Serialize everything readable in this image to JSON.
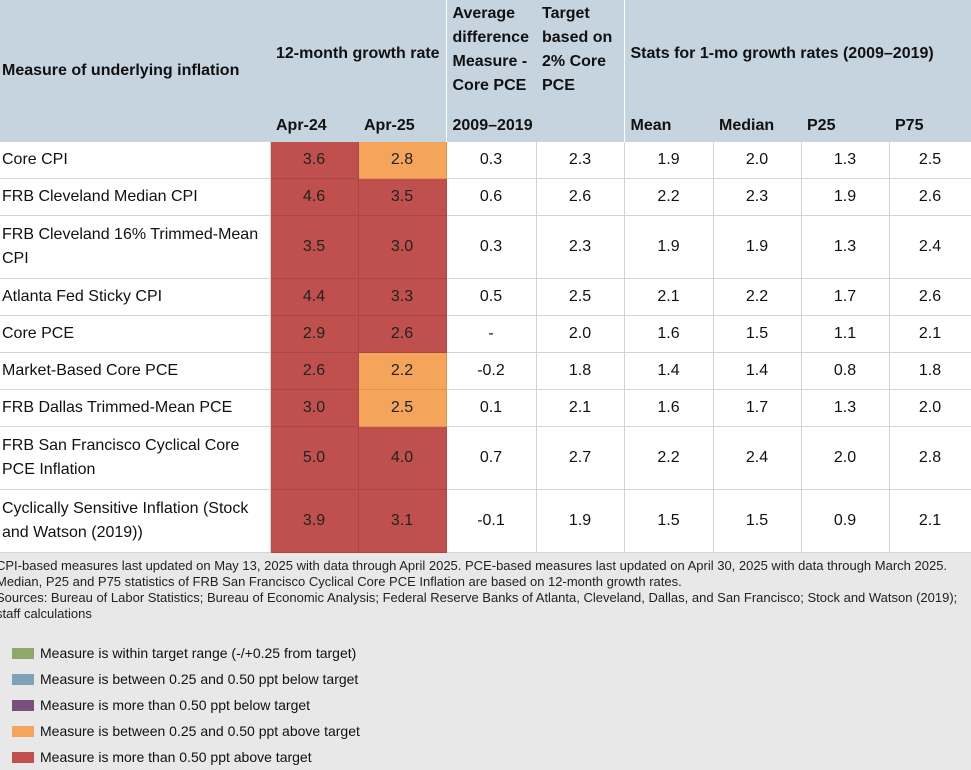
{
  "header": {
    "measure": "Measure of underlying inflation",
    "growth": "12-month growth rate",
    "avgdiff": "Average difference Measure - Core PCE",
    "target": "Target based on 2% Core PCE",
    "stats": "Stats for 1-mo growth rates (2009–2019)",
    "sub": [
      "Apr-24",
      "Apr-25",
      "2009–2019",
      "",
      "Mean",
      "Median",
      "P25",
      "P75"
    ]
  },
  "rows": [
    {
      "name": "Core CPI",
      "v": [
        "3.6",
        "2.8",
        "0.3",
        "2.3",
        "1.9",
        "2.0",
        "1.3",
        "2.5"
      ]
    },
    {
      "name": "FRB Cleveland Median CPI",
      "v": [
        "4.6",
        "3.5",
        "0.6",
        "2.6",
        "2.2",
        "2.3",
        "1.9",
        "2.6"
      ]
    },
    {
      "name": "FRB Cleveland 16% Trimmed-Mean CPI",
      "v": [
        "3.5",
        "3.0",
        "0.3",
        "2.3",
        "1.9",
        "1.9",
        "1.3",
        "2.4"
      ]
    },
    {
      "name": "Atlanta Fed Sticky CPI",
      "v": [
        "4.4",
        "3.3",
        "0.5",
        "2.5",
        "2.1",
        "2.2",
        "1.7",
        "2.6"
      ]
    },
    {
      "name": "Core PCE",
      "v": [
        "2.9",
        "2.6",
        "-",
        "2.0",
        "1.6",
        "1.5",
        "1.1",
        "2.1"
      ]
    },
    {
      "name": "Market-Based Core PCE",
      "v": [
        "2.6",
        "2.2",
        "-0.2",
        "1.8",
        "1.4",
        "1.4",
        "0.8",
        "1.8"
      ]
    },
    {
      "name": "FRB Dallas Trimmed-Mean PCE",
      "v": [
        "3.0",
        "2.5",
        "0.1",
        "2.1",
        "1.6",
        "1.7",
        "1.3",
        "2.0"
      ]
    },
    {
      "name": "FRB San Francisco Cyclical Core PCE Inflation",
      "v": [
        "5.0",
        "4.0",
        "0.7",
        "2.7",
        "2.2",
        "2.4",
        "2.0",
        "2.8"
      ]
    },
    {
      "name": "Cyclically Sensitive Inflation (Stock and Watson (2019))",
      "v": [
        "3.9",
        "3.1",
        "-0.1",
        "1.9",
        "1.5",
        "1.5",
        "0.9",
        "2.1"
      ]
    }
  ],
  "cell_colors": {
    "red": "#c0504d",
    "orange": "#f5a45c",
    "apr24": [
      "red",
      "red",
      "red",
      "red",
      "red",
      "red",
      "red",
      "red",
      "red"
    ],
    "apr25": [
      "orange",
      "red",
      "red",
      "red",
      "red",
      "orange",
      "orange",
      "red",
      "red"
    ]
  },
  "notes": {
    "line1": "CPI-based measures last updated on May 13, 2025 with data through April 2025. PCE-based measures last updated on April 30, 2025 with data through March 2025. Median, P25 and P75 statistics of FRB San Francisco Cyclical Core PCE Inflation are based on 12-month growth rates.",
    "line2": "Sources: Bureau of Labor Statistics; Bureau of Economic Analysis; Federal Reserve Banks of Atlanta, Cleveland, Dallas, and San Francisco; Stock and Watson (2019); staff calculations"
  },
  "legend": [
    {
      "label": "Measure is within target range (-/+0.25 from target)",
      "color": "#8ea86b"
    },
    {
      "label": "Measure is between 0.25 and 0.50 ppt below target",
      "color": "#7ea2b8"
    },
    {
      "label": "Measure is more than 0.50 ppt below target",
      "color": "#7a4f7d"
    },
    {
      "label": "Measure is between 0.25 and 0.50 ppt above target",
      "color": "#f5a45c"
    },
    {
      "label": "Measure is more than 0.50 ppt above target",
      "color": "#c0504d"
    }
  ]
}
